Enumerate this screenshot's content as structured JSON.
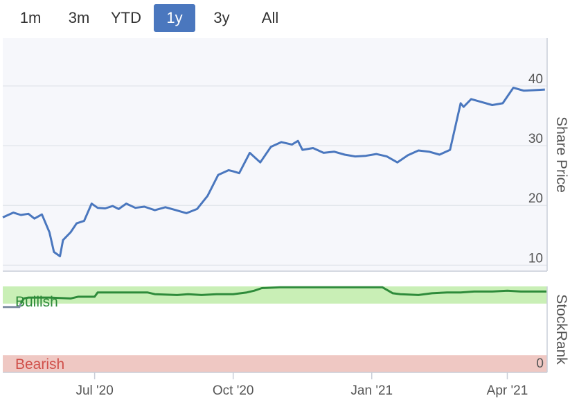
{
  "range_selector": {
    "buttons": [
      {
        "label": "1m",
        "active": false
      },
      {
        "label": "3m",
        "active": false
      },
      {
        "label": "YTD",
        "active": false
      },
      {
        "label": "1y",
        "active": true
      },
      {
        "label": "3y",
        "active": false
      },
      {
        "label": "All",
        "active": false
      }
    ]
  },
  "colors": {
    "accent": "#4a77be",
    "price_line": "#4a77be",
    "bullish_band": "#c9efb6",
    "bullish_text": "#2e8b3a",
    "bearish_band": "#efc8c3",
    "bearish_text": "#d0504a",
    "rank_line": "#2e8b3a",
    "rank_line_early": "#7f8ea3"
  },
  "chart_data": [
    {
      "type": "line",
      "title": "",
      "ylabel": "Share Price",
      "ylim": [
        9,
        48
      ],
      "yticks": [
        10,
        20,
        30,
        40
      ],
      "grid": true,
      "x_ticks": [
        "Jul '20",
        "Oct '20",
        "Jan '21",
        "Apr '21"
      ],
      "series": [
        {
          "x": [
            "2020-05-01",
            "2020-05-08",
            "2020-05-13",
            "2020-05-18",
            "2020-05-22",
            "2020-05-27",
            "2020-06-01",
            "2020-06-04",
            "2020-06-08",
            "2020-06-10",
            "2020-06-15",
            "2020-06-19",
            "2020-06-24",
            "2020-06-29",
            "2020-07-03",
            "2020-07-08",
            "2020-07-13",
            "2020-07-17",
            "2020-07-22",
            "2020-07-28",
            "2020-08-03",
            "2020-08-10",
            "2020-08-17",
            "2020-08-24",
            "2020-08-31",
            "2020-09-07",
            "2020-09-14",
            "2020-09-21",
            "2020-09-28",
            "2020-10-01",
            "2020-10-05",
            "2020-10-12",
            "2020-10-19",
            "2020-10-26",
            "2020-11-02",
            "2020-11-09",
            "2020-11-13",
            "2020-11-16",
            "2020-11-23",
            "2020-11-30",
            "2020-12-07",
            "2020-12-14",
            "2020-12-21",
            "2020-12-28",
            "2021-01-04",
            "2021-01-11",
            "2021-01-18",
            "2021-01-25",
            "2021-02-01",
            "2021-02-08",
            "2021-02-15",
            "2021-02-22",
            "2021-03-01",
            "2021-03-03",
            "2021-03-08",
            "2021-03-15",
            "2021-03-22",
            "2021-03-29",
            "2021-04-05",
            "2021-04-12",
            "2021-04-19",
            "2021-04-26"
          ],
          "y": [
            18.0,
            18.8,
            18.4,
            18.6,
            17.8,
            18.5,
            15.5,
            12.2,
            11.5,
            14.2,
            15.5,
            17.0,
            17.4,
            20.3,
            19.6,
            19.5,
            19.9,
            19.4,
            20.3,
            19.6,
            19.8,
            19.2,
            19.7,
            19.2,
            18.7,
            19.4,
            21.6,
            25.1,
            25.9,
            25.7,
            25.4,
            28.8,
            27.2,
            29.8,
            30.6,
            30.2,
            30.8,
            29.3,
            29.6,
            28.8,
            29.0,
            28.5,
            28.2,
            28.3,
            28.6,
            28.2,
            27.2,
            28.4,
            29.2,
            29.0,
            28.5,
            29.3,
            37.1,
            36.5,
            37.8,
            37.3,
            36.8,
            37.1,
            39.7,
            39.2,
            39.3,
            39.4
          ]
        }
      ]
    },
    {
      "type": "line",
      "ylabel": "StockRank",
      "yticks": [
        0
      ],
      "ylim": [
        0,
        100
      ],
      "bands": [
        {
          "label": "Bullish",
          "from": 80,
          "to": 100
        },
        {
          "label": "Bearish",
          "from": 0,
          "to": 20
        }
      ],
      "series": [
        {
          "x": [
            "2020-05-01",
            "2020-05-12",
            "2020-05-13",
            "2020-05-15",
            "2020-05-18",
            "2020-06-01",
            "2020-06-15",
            "2020-06-20",
            "2020-07-01",
            "2020-07-03",
            "2020-07-10",
            "2020-08-05",
            "2020-08-10",
            "2020-08-25",
            "2020-09-01",
            "2020-09-10",
            "2020-09-20",
            "2020-10-01",
            "2020-10-10",
            "2020-10-15",
            "2020-10-20",
            "2020-11-01",
            "2020-11-15",
            "2020-12-01",
            "2020-12-15",
            "2021-01-05",
            "2021-01-08",
            "2021-01-15",
            "2021-01-20",
            "2021-02-01",
            "2021-02-10",
            "2021-02-20",
            "2021-03-01",
            "2021-03-10",
            "2021-03-22",
            "2021-04-01",
            "2021-04-10",
            "2021-04-20",
            "2021-04-27"
          ],
          "y": [
            76,
            76,
            80,
            86,
            87,
            87,
            86,
            88,
            88,
            93,
            93,
            93,
            91,
            90,
            91,
            90,
            91,
            91,
            93,
            95,
            98,
            99,
            99,
            99,
            99,
            99,
            99,
            92,
            91,
            90,
            92,
            93,
            93,
            94,
            94,
            95,
            94,
            94,
            94
          ]
        }
      ]
    }
  ]
}
